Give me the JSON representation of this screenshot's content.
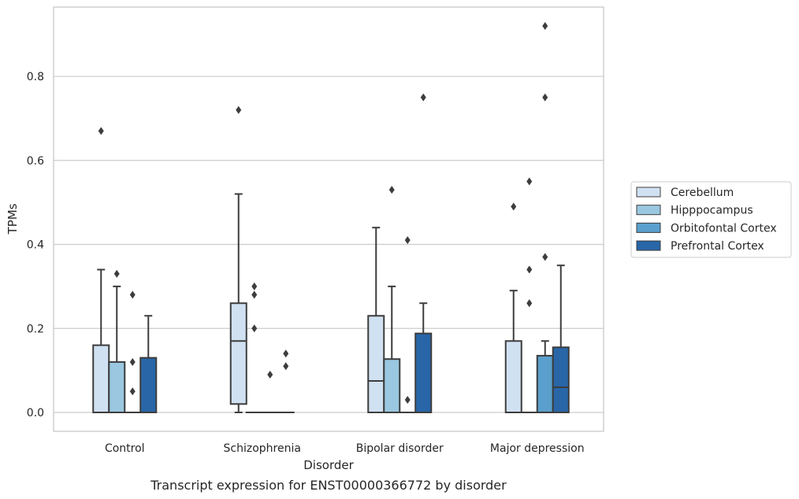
{
  "chart_data": {
    "type": "box",
    "title": "",
    "caption": "Transcript expression for ENST00000366772 by disorder",
    "xlabel": "Disorder",
    "ylabel": "TPMs",
    "ylim": [
      -0.045,
      0.965
    ],
    "yticks": [
      "0.0",
      "0.2",
      "0.4",
      "0.6",
      "0.8"
    ],
    "grid": "horizontal",
    "legend_position": "right",
    "categories": [
      "Control",
      "Schizophrenia",
      "Bipolar disorder",
      "Major depression"
    ],
    "series": [
      {
        "name": "Cerebellum",
        "color": "#d0e1f2",
        "boxes": [
          {
            "q1": 0.0,
            "median": 0.0,
            "q3": 0.16,
            "whisker_low": 0.0,
            "whisker_high": 0.34,
            "outliers": [
              0.67
            ]
          },
          {
            "q1": 0.02,
            "median": 0.17,
            "q3": 0.26,
            "whisker_low": 0.0,
            "whisker_high": 0.52,
            "outliers": [
              0.72
            ]
          },
          {
            "q1": 0.0,
            "median": 0.075,
            "q3": 0.23,
            "whisker_low": 0.0,
            "whisker_high": 0.44,
            "outliers": []
          },
          {
            "q1": 0.0,
            "median": 0.0,
            "q3": 0.17,
            "whisker_low": 0.0,
            "whisker_high": 0.29,
            "outliers": [
              0.49
            ]
          }
        ]
      },
      {
        "name": "Hipppocampus",
        "color": "#9ac8e0",
        "boxes": [
          {
            "q1": 0.0,
            "median": 0.0,
            "q3": 0.12,
            "whisker_low": 0.0,
            "whisker_high": 0.3,
            "outliers": [
              0.33
            ]
          },
          {
            "q1": 0.0,
            "median": 0.0,
            "q3": 0.0,
            "whisker_low": 0.0,
            "whisker_high": 0.0,
            "outliers": [
              0.2,
              0.28,
              0.3
            ]
          },
          {
            "q1": 0.0,
            "median": 0.0,
            "q3": 0.127,
            "whisker_low": 0.0,
            "whisker_high": 0.3,
            "outliers": [
              0.53
            ]
          },
          {
            "q1": 0.0,
            "median": 0.0,
            "q3": 0.0,
            "whisker_low": 0.0,
            "whisker_high": 0.0,
            "outliers": [
              0.26,
              0.34,
              0.55
            ]
          }
        ]
      },
      {
        "name": "Orbitofontal Cortex",
        "color": "#5a9fcd",
        "boxes": [
          {
            "q1": 0.0,
            "median": 0.0,
            "q3": 0.0,
            "whisker_low": 0.0,
            "whisker_high": 0.0,
            "outliers": [
              0.05,
              0.12,
              0.28
            ]
          },
          {
            "q1": 0.0,
            "median": 0.0,
            "q3": 0.0,
            "whisker_low": 0.0,
            "whisker_high": 0.0,
            "outliers": [
              0.09
            ]
          },
          {
            "q1": 0.0,
            "median": 0.0,
            "q3": 0.0,
            "whisker_low": 0.0,
            "whisker_high": 0.0,
            "outliers": [
              0.03,
              0.41
            ]
          },
          {
            "q1": 0.0,
            "median": 0.0,
            "q3": 0.135,
            "whisker_low": 0.0,
            "whisker_high": 0.17,
            "outliers": [
              0.37,
              0.75,
              0.92
            ]
          }
        ]
      },
      {
        "name": "Prefrontal Cortex",
        "color": "#2866a8",
        "boxes": [
          {
            "q1": 0.0,
            "median": 0.0,
            "q3": 0.13,
            "whisker_low": 0.0,
            "whisker_high": 0.23,
            "outliers": []
          },
          {
            "q1": 0.0,
            "median": 0.0,
            "q3": 0.0,
            "whisker_low": 0.0,
            "whisker_high": 0.0,
            "outliers": [
              0.11,
              0.14
            ]
          },
          {
            "q1": 0.0,
            "median": 0.0,
            "q3": 0.188,
            "whisker_low": 0.0,
            "whisker_high": 0.26,
            "outliers": [
              0.75
            ]
          },
          {
            "q1": 0.0,
            "median": 0.06,
            "q3": 0.155,
            "whisker_low": 0.0,
            "whisker_high": 0.35,
            "outliers": []
          }
        ]
      }
    ]
  }
}
